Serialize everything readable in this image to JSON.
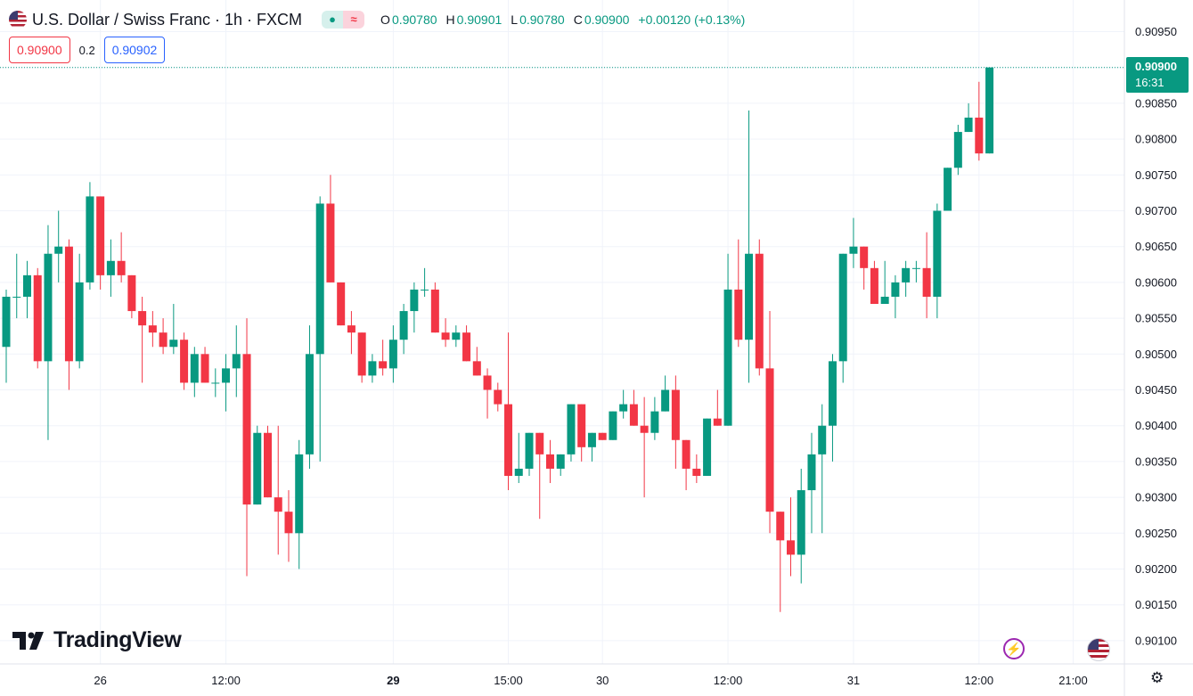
{
  "header": {
    "symbol": "U.S. Dollar / Swiss Franc · 1h · FXCM",
    "icons": [
      "us-flag-icon",
      "dot-icon",
      "approx-icon"
    ],
    "pill_dot": "●",
    "pill_approx": "≈",
    "ohlc": [
      {
        "k": "O",
        "v": "0.90780"
      },
      {
        "k": "H",
        "v": "0.90901"
      },
      {
        "k": "L",
        "v": "0.90780"
      },
      {
        "k": "C",
        "v": "0.90900"
      }
    ],
    "change": "+0.00120 (+0.13%)"
  },
  "trade": {
    "sell": "0.90900",
    "spread": "0.2",
    "buy": "0.90902"
  },
  "brand": "TradingView",
  "last_price": {
    "price": "0.90900",
    "countdown": "16:31"
  },
  "bottom_icons": {
    "bolt": "⚡",
    "gear": "⚙"
  },
  "colors": {
    "up": "#089981",
    "down": "#f23645",
    "grid": "#f0f3fa",
    "axis_text": "#131722"
  },
  "chart_data": {
    "type": "candlestick",
    "title": "U.S. Dollar / Swiss Franc · 1h · FXCM",
    "ylim": [
      0.90075,
      0.90975
    ],
    "y_ticks": [
      "0.90950",
      "0.90900",
      "0.90850",
      "0.90800",
      "0.90750",
      "0.90700",
      "0.90650",
      "0.90600",
      "0.90550",
      "0.90500",
      "0.90450",
      "0.90400",
      "0.90350",
      "0.90300",
      "0.90250",
      "0.90200",
      "0.90150",
      "0.90100"
    ],
    "x_ticks": [
      {
        "label": "26",
        "index": 9
      },
      {
        "label": "12:00",
        "index": 21
      },
      {
        "label": "29",
        "index": 37
      },
      {
        "label": "15:00",
        "index": 48
      },
      {
        "label": "30",
        "index": 57
      },
      {
        "label": "12:00",
        "index": 69
      },
      {
        "label": "31",
        "index": 81
      },
      {
        "label": "12:00",
        "index": 93
      },
      {
        "label": "21:00",
        "index": 102
      }
    ],
    "last_close": 0.909,
    "candles": [
      {
        "o": 0.9051,
        "h": 0.9059,
        "l": 0.9046,
        "c": 0.9058
      },
      {
        "o": 0.9058,
        "h": 0.9064,
        "l": 0.9055,
        "c": 0.9058
      },
      {
        "o": 0.9058,
        "h": 0.9063,
        "l": 0.9055,
        "c": 0.9061
      },
      {
        "o": 0.9061,
        "h": 0.9062,
        "l": 0.9048,
        "c": 0.9049
      },
      {
        "o": 0.9049,
        "h": 0.9068,
        "l": 0.9038,
        "c": 0.9064
      },
      {
        "o": 0.9064,
        "h": 0.907,
        "l": 0.906,
        "c": 0.9065
      },
      {
        "o": 0.9065,
        "h": 0.9066,
        "l": 0.9045,
        "c": 0.9049
      },
      {
        "o": 0.9049,
        "h": 0.9064,
        "l": 0.9048,
        "c": 0.906
      },
      {
        "o": 0.906,
        "h": 0.9074,
        "l": 0.9059,
        "c": 0.9072
      },
      {
        "o": 0.9072,
        "h": 0.9072,
        "l": 0.9059,
        "c": 0.9061
      },
      {
        "o": 0.9061,
        "h": 0.9066,
        "l": 0.9058,
        "c": 0.9063
      },
      {
        "o": 0.9063,
        "h": 0.9067,
        "l": 0.906,
        "c": 0.9061
      },
      {
        "o": 0.9061,
        "h": 0.9061,
        "l": 0.9055,
        "c": 0.9056
      },
      {
        "o": 0.9056,
        "h": 0.9058,
        "l": 0.9046,
        "c": 0.9054
      },
      {
        "o": 0.9054,
        "h": 0.9056,
        "l": 0.9051,
        "c": 0.9053
      },
      {
        "o": 0.9053,
        "h": 0.9055,
        "l": 0.905,
        "c": 0.9051
      },
      {
        "o": 0.9051,
        "h": 0.9057,
        "l": 0.905,
        "c": 0.9052
      },
      {
        "o": 0.9052,
        "h": 0.9053,
        "l": 0.9045,
        "c": 0.9046
      },
      {
        "o": 0.9046,
        "h": 0.9051,
        "l": 0.9044,
        "c": 0.905
      },
      {
        "o": 0.905,
        "h": 0.9051,
        "l": 0.9046,
        "c": 0.9046
      },
      {
        "o": 0.9046,
        "h": 0.9048,
        "l": 0.9044,
        "c": 0.9046
      },
      {
        "o": 0.9046,
        "h": 0.905,
        "l": 0.9042,
        "c": 0.9048
      },
      {
        "o": 0.9048,
        "h": 0.9054,
        "l": 0.9044,
        "c": 0.905
      },
      {
        "o": 0.905,
        "h": 0.9055,
        "l": 0.9019,
        "c": 0.9029
      },
      {
        "o": 0.9029,
        "h": 0.904,
        "l": 0.9029,
        "c": 0.9039
      },
      {
        "o": 0.9039,
        "h": 0.904,
        "l": 0.903,
        "c": 0.903
      },
      {
        "o": 0.903,
        "h": 0.904,
        "l": 0.9022,
        "c": 0.9028
      },
      {
        "o": 0.9028,
        "h": 0.9031,
        "l": 0.9021,
        "c": 0.9025
      },
      {
        "o": 0.9025,
        "h": 0.9038,
        "l": 0.902,
        "c": 0.9036
      },
      {
        "o": 0.9036,
        "h": 0.9054,
        "l": 0.9034,
        "c": 0.905
      },
      {
        "o": 0.905,
        "h": 0.9072,
        "l": 0.9035,
        "c": 0.9071
      },
      {
        "o": 0.9071,
        "h": 0.9075,
        "l": 0.906,
        "c": 0.906
      },
      {
        "o": 0.906,
        "h": 0.906,
        "l": 0.9054,
        "c": 0.9054
      },
      {
        "o": 0.9054,
        "h": 0.9056,
        "l": 0.905,
        "c": 0.9053
      },
      {
        "o": 0.9053,
        "h": 0.9053,
        "l": 0.9046,
        "c": 0.9047
      },
      {
        "o": 0.9047,
        "h": 0.905,
        "l": 0.9046,
        "c": 0.9049
      },
      {
        "o": 0.9049,
        "h": 0.9052,
        "l": 0.9047,
        "c": 0.9048
      },
      {
        "o": 0.9048,
        "h": 0.9054,
        "l": 0.9046,
        "c": 0.9052
      },
      {
        "o": 0.9052,
        "h": 0.9057,
        "l": 0.905,
        "c": 0.9056
      },
      {
        "o": 0.9056,
        "h": 0.906,
        "l": 0.9053,
        "c": 0.9059
      },
      {
        "o": 0.9059,
        "h": 0.9062,
        "l": 0.9058,
        "c": 0.9059
      },
      {
        "o": 0.9059,
        "h": 0.906,
        "l": 0.9053,
        "c": 0.9053
      },
      {
        "o": 0.9053,
        "h": 0.9055,
        "l": 0.9051,
        "c": 0.9052
      },
      {
        "o": 0.9052,
        "h": 0.9054,
        "l": 0.9051,
        "c": 0.9053
      },
      {
        "o": 0.9053,
        "h": 0.9054,
        "l": 0.9049,
        "c": 0.9049
      },
      {
        "o": 0.9049,
        "h": 0.9051,
        "l": 0.9047,
        "c": 0.9047
      },
      {
        "o": 0.9047,
        "h": 0.9048,
        "l": 0.9041,
        "c": 0.9045
      },
      {
        "o": 0.9045,
        "h": 0.9046,
        "l": 0.9042,
        "c": 0.9043
      },
      {
        "o": 0.9043,
        "h": 0.9053,
        "l": 0.9031,
        "c": 0.9033
      },
      {
        "o": 0.9033,
        "h": 0.9039,
        "l": 0.9032,
        "c": 0.9034
      },
      {
        "o": 0.9034,
        "h": 0.9039,
        "l": 0.9033,
        "c": 0.9039
      },
      {
        "o": 0.9039,
        "h": 0.9039,
        "l": 0.9027,
        "c": 0.9036
      },
      {
        "o": 0.9036,
        "h": 0.9038,
        "l": 0.9032,
        "c": 0.9034
      },
      {
        "o": 0.9034,
        "h": 0.9036,
        "l": 0.9033,
        "c": 0.9036
      },
      {
        "o": 0.9036,
        "h": 0.9043,
        "l": 0.9035,
        "c": 0.9043
      },
      {
        "o": 0.9043,
        "h": 0.9043,
        "l": 0.9035,
        "c": 0.9037
      },
      {
        "o": 0.9037,
        "h": 0.9039,
        "l": 0.9035,
        "c": 0.9039
      },
      {
        "o": 0.9039,
        "h": 0.9039,
        "l": 0.9038,
        "c": 0.9038
      },
      {
        "o": 0.9038,
        "h": 0.9042,
        "l": 0.9038,
        "c": 0.9042
      },
      {
        "o": 0.9042,
        "h": 0.9045,
        "l": 0.9041,
        "c": 0.9043
      },
      {
        "o": 0.9043,
        "h": 0.9045,
        "l": 0.904,
        "c": 0.904
      },
      {
        "o": 0.904,
        "h": 0.9044,
        "l": 0.903,
        "c": 0.9039
      },
      {
        "o": 0.9039,
        "h": 0.9044,
        "l": 0.9038,
        "c": 0.9042
      },
      {
        "o": 0.9042,
        "h": 0.9047,
        "l": 0.9042,
        "c": 0.9045
      },
      {
        "o": 0.9045,
        "h": 0.9047,
        "l": 0.9034,
        "c": 0.9038
      },
      {
        "o": 0.9038,
        "h": 0.9038,
        "l": 0.9031,
        "c": 0.9034
      },
      {
        "o": 0.9034,
        "h": 0.9036,
        "l": 0.9032,
        "c": 0.9033
      },
      {
        "o": 0.9033,
        "h": 0.9041,
        "l": 0.9033,
        "c": 0.9041
      },
      {
        "o": 0.9041,
        "h": 0.9045,
        "l": 0.904,
        "c": 0.904
      },
      {
        "o": 0.904,
        "h": 0.9064,
        "l": 0.904,
        "c": 0.9059
      },
      {
        "o": 0.9059,
        "h": 0.9066,
        "l": 0.9051,
        "c": 0.9052
      },
      {
        "o": 0.9052,
        "h": 0.9084,
        "l": 0.9046,
        "c": 0.9064
      },
      {
        "o": 0.9064,
        "h": 0.9066,
        "l": 0.9047,
        "c": 0.9048
      },
      {
        "o": 0.9048,
        "h": 0.9056,
        "l": 0.9025,
        "c": 0.9028
      },
      {
        "o": 0.9028,
        "h": 0.9028,
        "l": 0.9014,
        "c": 0.9024
      },
      {
        "o": 0.9024,
        "h": 0.903,
        "l": 0.9019,
        "c": 0.9022
      },
      {
        "o": 0.9022,
        "h": 0.9034,
        "l": 0.9018,
        "c": 0.9031
      },
      {
        "o": 0.9031,
        "h": 0.9039,
        "l": 0.9025,
        "c": 0.9036
      },
      {
        "o": 0.9036,
        "h": 0.9043,
        "l": 0.9025,
        "c": 0.904
      },
      {
        "o": 0.904,
        "h": 0.905,
        "l": 0.9035,
        "c": 0.9049
      },
      {
        "o": 0.9049,
        "h": 0.9064,
        "l": 0.9046,
        "c": 0.9064
      },
      {
        "o": 0.9064,
        "h": 0.9069,
        "l": 0.9062,
        "c": 0.9065
      },
      {
        "o": 0.9065,
        "h": 0.9065,
        "l": 0.9059,
        "c": 0.9062
      },
      {
        "o": 0.9062,
        "h": 0.9063,
        "l": 0.9057,
        "c": 0.9057
      },
      {
        "o": 0.9057,
        "h": 0.9063,
        "l": 0.9057,
        "c": 0.9058
      },
      {
        "o": 0.9058,
        "h": 0.9061,
        "l": 0.9055,
        "c": 0.906
      },
      {
        "o": 0.906,
        "h": 0.9063,
        "l": 0.9058,
        "c": 0.9062
      },
      {
        "o": 0.9062,
        "h": 0.9063,
        "l": 0.906,
        "c": 0.9062
      },
      {
        "o": 0.9062,
        "h": 0.9067,
        "l": 0.9055,
        "c": 0.9058
      },
      {
        "o": 0.9058,
        "h": 0.9071,
        "l": 0.9055,
        "c": 0.907
      },
      {
        "o": 0.907,
        "h": 0.9076,
        "l": 0.907,
        "c": 0.9076
      },
      {
        "o": 0.9076,
        "h": 0.9082,
        "l": 0.9075,
        "c": 0.9081
      },
      {
        "o": 0.9081,
        "h": 0.9085,
        "l": 0.9081,
        "c": 0.9083
      },
      {
        "o": 0.9083,
        "h": 0.9088,
        "l": 0.9077,
        "c": 0.9078
      },
      {
        "o": 0.9078,
        "h": 0.909,
        "l": 0.9078,
        "c": 0.909
      }
    ]
  }
}
